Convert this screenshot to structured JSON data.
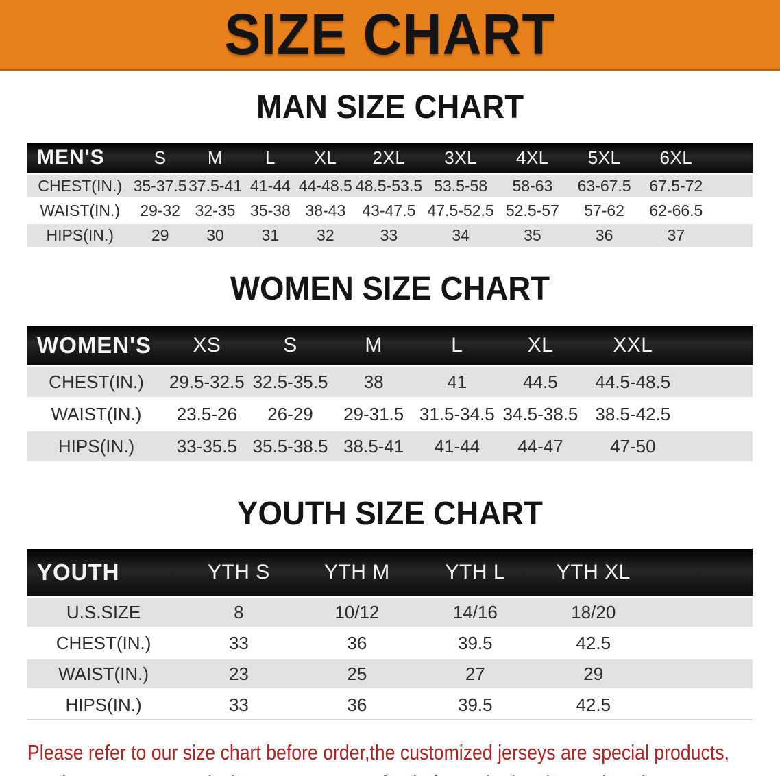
{
  "banner": {
    "title": "SIZE CHART",
    "bg_color": "#E8811C"
  },
  "colors": {
    "header_bar": "#141414",
    "stripe_gray": "#E2E2E2",
    "disclaimer_red": "#B32222"
  },
  "sections": [
    {
      "heading": "MAN SIZE CHART",
      "table": {
        "category_label": "MEN'S",
        "columns": [
          "S",
          "M",
          "L",
          "XL",
          "2XL",
          "3XL",
          "4XL",
          "5XL",
          "6XL"
        ],
        "rows": [
          {
            "label": "CHEST(IN.)",
            "values": [
              "35-37.5",
              "37.5-41",
              "41-44",
              "44-48.5",
              "48.5-53.5",
              "53.5-58",
              "58-63",
              "63-67.5",
              "67.5-72"
            ]
          },
          {
            "label": "WAIST(IN.)",
            "values": [
              "29-32",
              "32-35",
              "35-38",
              "38-43",
              "43-47.5",
              "47.5-52.5",
              "52.5-57",
              "57-62",
              "62-66.5"
            ]
          },
          {
            "label": "HIPS(IN.)",
            "values": [
              "29",
              "30",
              "31",
              "32",
              "33",
              "34",
              "35",
              "36",
              "37"
            ]
          }
        ]
      }
    },
    {
      "heading": "WOMEN SIZE CHART",
      "table": {
        "category_label": "WOMEN'S",
        "columns": [
          "XS",
          "S",
          "M",
          "L",
          "XL",
          "XXL"
        ],
        "rows": [
          {
            "label": "CHEST(IN.)",
            "values": [
              "29.5-32.5",
              "32.5-35.5",
              "38",
              "41",
              "44.5",
              "44.5-48.5"
            ]
          },
          {
            "label": "WAIST(IN.)",
            "values": [
              "23.5-26",
              "26-29",
              "29-31.5",
              "31.5-34.5",
              "34.5-38.5",
              "38.5-42.5"
            ]
          },
          {
            "label": "HIPS(IN.)",
            "values": [
              "33-35.5",
              "35.5-38.5",
              "38.5-41",
              "41-44",
              "44-47",
              "47-50"
            ]
          }
        ]
      }
    },
    {
      "heading": "YOUTH SIZE CHART",
      "table": {
        "category_label": "YOUTH",
        "columns": [
          "YTH S",
          "YTH M",
          "YTH L",
          "YTH XL"
        ],
        "rows": [
          {
            "label": "U.S.SIZE",
            "values": [
              "8",
              "10/12",
              "14/16",
              "18/20"
            ]
          },
          {
            "label": "CHEST(IN.)",
            "values": [
              "33",
              "36",
              "39.5",
              "42.5"
            ]
          },
          {
            "label": "WAIST(IN.)",
            "values": [
              "23",
              "25",
              "27",
              "29"
            ]
          },
          {
            "label": "HIPS(IN.)",
            "values": [
              "33",
              "36",
              "39.5",
              "42.5"
            ]
          }
        ]
      }
    }
  ],
  "disclaimer": {
    "lines": [
      "Please refer to our size chart before order,the customized jerseys are special products,",
      "we don't accept cancel, change, teturn or refund after order has been placed!"
    ]
  }
}
